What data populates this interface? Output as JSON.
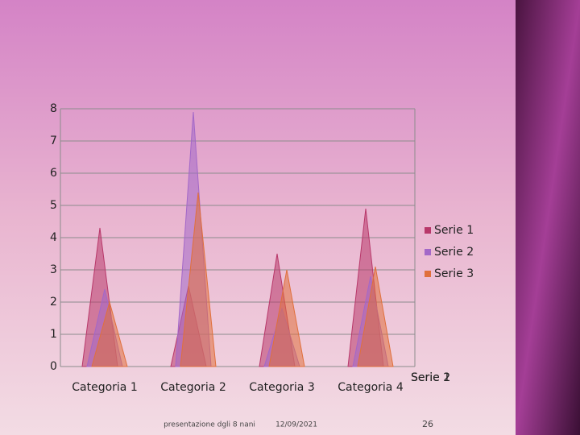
{
  "chart_data": {
    "type": "cone",
    "categories": [
      "Categoria 1",
      "Categoria 2",
      "Categoria 3",
      "Categoria 4"
    ],
    "series": [
      {
        "name": "Serie 1",
        "color": "#b8386a",
        "values": [
          4.3,
          2.5,
          3.5,
          4.9
        ]
      },
      {
        "name": "Serie 2",
        "color": "#a368c8",
        "values": [
          2.4,
          7.9,
          1.8,
          2.8
        ]
      },
      {
        "name": "Serie 3",
        "color": "#e0703c",
        "values": [
          2,
          5.4,
          3,
          3.1
        ]
      }
    ],
    "ylim": [
      0,
      8
    ],
    "yticks": [
      0,
      1,
      2,
      3,
      4,
      5,
      6,
      7,
      8
    ],
    "grid": true,
    "legend": "right"
  },
  "footer": {
    "text": "presentazione dgli 8 nani",
    "date": "12/09/2021",
    "page": "26"
  }
}
